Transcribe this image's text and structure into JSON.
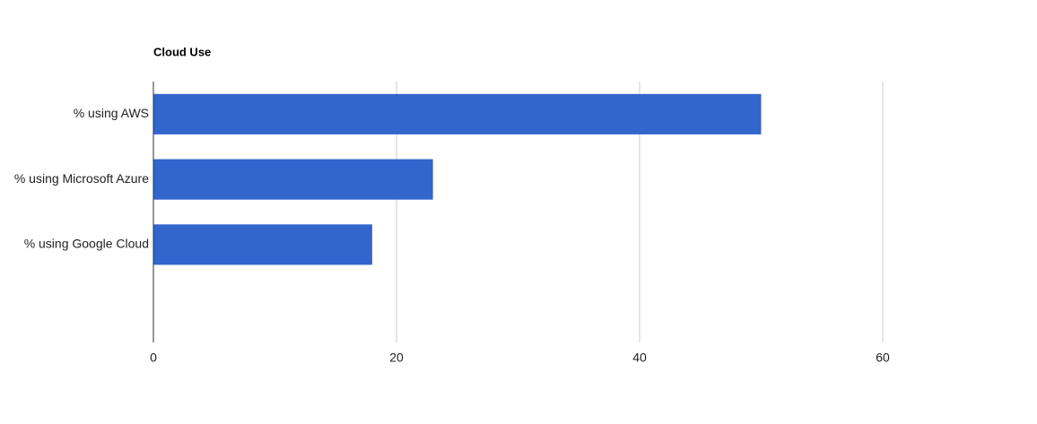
{
  "chart_data": {
    "type": "hbar",
    "title": "Cloud Use",
    "categories": [
      "% using AWS",
      "% using Microsoft Azure",
      "% using Google Cloud",
      null
    ],
    "values": [
      50,
      23,
      18,
      null
    ],
    "color": "#3366cc",
    "xlim": [
      0,
      60
    ],
    "xticks": [
      0,
      20,
      40,
      60
    ],
    "grid": true
  }
}
